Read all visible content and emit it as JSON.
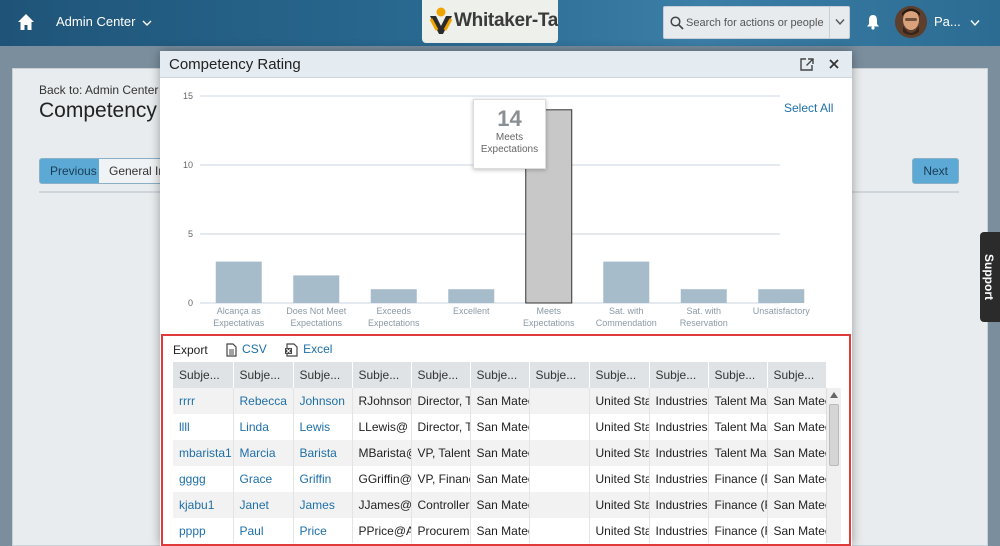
{
  "header": {
    "breadcrumb": "Admin Center",
    "logo_text": "Whitaker-Taylor",
    "search_placeholder": "Search for actions or people",
    "user_name": "Pa..."
  },
  "page": {
    "back_link": "Back to: Admin Center >",
    "title": "Competency Rating",
    "previous_label": "Previous",
    "tab_label": "General Info",
    "next_label": "Next",
    "support_label": "Support"
  },
  "dialog": {
    "title": "Competency Rating",
    "select_all": "Select All",
    "tooltip": {
      "value": "14",
      "label": "Meets Expectations"
    },
    "export": {
      "label": "Export",
      "csv": "CSV",
      "excel": "Excel"
    },
    "table": {
      "headers": [
        "Subje...",
        "Subje...",
        "Subje...",
        "Subje...",
        "Subje...",
        "Subje...",
        "Subje...",
        "Subje...",
        "Subje...",
        "Subje...",
        "Subje..."
      ],
      "rows": [
        [
          "rrrr",
          "Rebecca",
          "Johnson",
          "RJohnson",
          "Director, T",
          "San Mateo",
          "",
          "United Sta",
          "Industries",
          "Talent Ma",
          "San Mateo"
        ],
        [
          "llll",
          "Linda",
          "Lewis",
          "LLewis@",
          "Director, T",
          "San Mateo",
          "",
          "United Sta",
          "Industries",
          "Talent Ma",
          "San Mateo"
        ],
        [
          "mbarista1",
          "Marcia",
          "Barista",
          "MBarista@",
          "VP, Talent",
          "San Mateo",
          "",
          "United Sta",
          "Industries",
          "Talent Ma",
          "San Mateo"
        ],
        [
          "gggg",
          "Grace",
          "Griffin",
          "GGriffin@",
          "VP, Financ",
          "San Mateo",
          "",
          "United Sta",
          "Industries",
          "Finance (F",
          "San Mateo"
        ],
        [
          "kjabu1",
          "Janet",
          "James",
          "JJames@",
          "Controller",
          "San Mateo",
          "",
          "United Sta",
          "Industries",
          "Finance (F",
          "San Mateo"
        ],
        [
          "pppp",
          "Paul",
          "Price",
          "PPrice@A",
          "Procureme",
          "San Mateo",
          "",
          "United Sta",
          "Industries",
          "Finance (F",
          "San Mateo"
        ]
      ]
    }
  },
  "colors": {
    "bar": "#a7bccb",
    "bar_selected": "#c8c8c8",
    "gridline": "#c9d6df",
    "link": "#1e6fa8",
    "highlight_border": "#e03a3a"
  },
  "chart_data": {
    "type": "bar",
    "categories": [
      "Alcança as Expectativas",
      "Does Not Meet Expectations",
      "Exceeds Expectations",
      "Excellent",
      "Meets Expectations",
      "Sat. with Commendation",
      "Sat. with Reservation",
      "Unsatisfactory"
    ],
    "values": [
      3,
      2,
      1,
      1,
      14,
      3,
      1,
      1
    ],
    "yticks": [
      0,
      5,
      10,
      15
    ],
    "ylim": [
      0,
      15
    ],
    "selected_index": 4,
    "grid": true
  }
}
